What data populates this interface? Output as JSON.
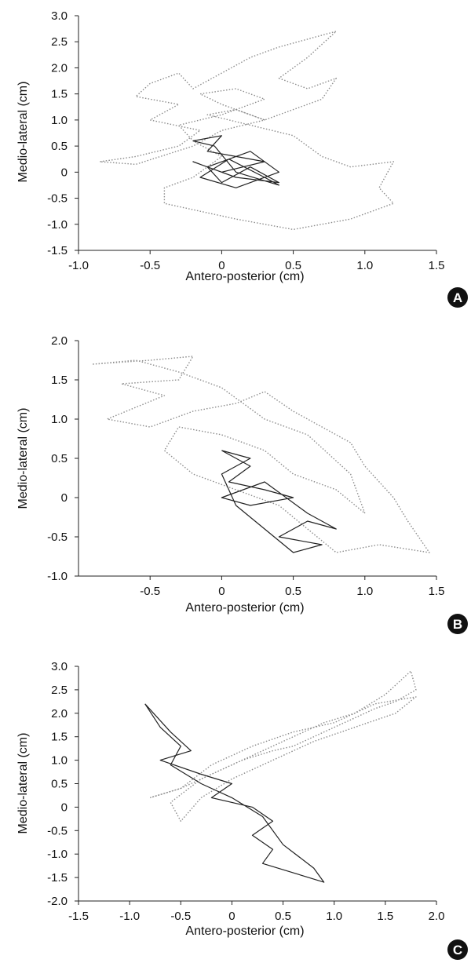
{
  "chart_data": [
    {
      "panel": "A",
      "type": "line",
      "xlabel": "Antero-posterior (cm)",
      "ylabel": "Medio-lateral (cm)",
      "xlim": [
        -1.0,
        1.5
      ],
      "ylim": [
        -1.5,
        3.0
      ],
      "x_ticks": [
        "-1.0",
        "-0.5",
        "0",
        "0.5",
        "1.0",
        "1.5"
      ],
      "y_ticks": [
        "-1.5",
        "-1.0",
        "-0.5",
        "0",
        "0.5",
        "1.0",
        "1.5",
        "2.0",
        "2.5",
        "3.0"
      ],
      "series": [
        {
          "style": "dotted",
          "color": "#8c8c8c",
          "points": [
            [
              -0.85,
              0.2
            ],
            [
              -0.6,
              0.3
            ],
            [
              -0.3,
              0.5
            ],
            [
              -0.15,
              0.8
            ],
            [
              -0.5,
              1.0
            ],
            [
              -0.3,
              1.3
            ],
            [
              -0.6,
              1.45
            ],
            [
              -0.5,
              1.7
            ],
            [
              -0.3,
              1.9
            ],
            [
              -0.2,
              1.6
            ],
            [
              0.0,
              1.9
            ],
            [
              0.2,
              2.2
            ],
            [
              0.4,
              2.4
            ],
            [
              0.6,
              2.55
            ],
            [
              0.8,
              2.7
            ],
            [
              0.6,
              2.2
            ],
            [
              0.4,
              1.8
            ],
            [
              0.6,
              1.6
            ],
            [
              0.8,
              1.8
            ],
            [
              0.7,
              1.4
            ],
            [
              0.5,
              1.2
            ],
            [
              0.3,
              1.0
            ],
            [
              0.1,
              1.2
            ],
            [
              -0.1,
              1.1
            ],
            [
              0.2,
              0.9
            ],
            [
              0.5,
              0.7
            ],
            [
              0.7,
              0.3
            ],
            [
              0.9,
              0.1
            ],
            [
              1.2,
              0.2
            ],
            [
              1.1,
              -0.3
            ],
            [
              1.2,
              -0.6
            ],
            [
              0.9,
              -0.9
            ],
            [
              0.5,
              -1.1
            ],
            [
              0.1,
              -0.9
            ],
            [
              -0.4,
              -0.6
            ],
            [
              -0.4,
              -0.3
            ],
            [
              -0.2,
              -0.1
            ],
            [
              0.0,
              0.3
            ],
            [
              -0.2,
              0.6
            ],
            [
              -0.3,
              0.9
            ],
            [
              0.0,
              1.1
            ],
            [
              0.3,
              1.4
            ],
            [
              0.1,
              1.6
            ],
            [
              -0.15,
              1.5
            ],
            [
              0.0,
              1.3
            ],
            [
              0.3,
              1.0
            ],
            [
              0.0,
              0.8
            ],
            [
              -0.2,
              0.5
            ],
            [
              -0.6,
              0.15
            ],
            [
              -0.85,
              0.2
            ]
          ]
        },
        {
          "style": "solid",
          "color": "#222222",
          "points": [
            [
              -0.2,
              0.6
            ],
            [
              0.0,
              0.7
            ],
            [
              -0.1,
              0.4
            ],
            [
              0.1,
              0.3
            ],
            [
              0.3,
              0.2
            ],
            [
              0.0,
              0.0
            ],
            [
              -0.2,
              0.2
            ],
            [
              0.1,
              -0.1
            ],
            [
              0.4,
              -0.2
            ],
            [
              0.2,
              0.1
            ],
            [
              0.0,
              -0.2
            ],
            [
              -0.1,
              0.1
            ],
            [
              0.2,
              0.4
            ],
            [
              0.4,
              0.0
            ],
            [
              0.1,
              -0.3
            ],
            [
              -0.15,
              -0.1
            ],
            [
              0.05,
              0.25
            ],
            [
              0.3,
              -0.1
            ],
            [
              0.4,
              -0.25
            ],
            [
              0.1,
              0.0
            ],
            [
              -0.05,
              0.5
            ],
            [
              -0.2,
              0.6
            ]
          ]
        }
      ]
    },
    {
      "panel": "B",
      "type": "line",
      "xlabel": "Antero-posterior (cm)",
      "ylabel": "Medio-lateral (cm)",
      "xlim": [
        -1.0,
        1.5
      ],
      "ylim": [
        -1.0,
        2.0
      ],
      "x_ticks": [
        "-0.5",
        "0",
        "0.5",
        "1.0",
        "1.5"
      ],
      "y_ticks": [
        "-1.0",
        "-0.5",
        "0",
        "0.5",
        "1.0",
        "1.5",
        "2.0"
      ],
      "series": [
        {
          "style": "dotted",
          "color": "#8c8c8c",
          "points": [
            [
              -0.9,
              1.7
            ],
            [
              -0.5,
              1.75
            ],
            [
              -0.2,
              1.8
            ],
            [
              -0.3,
              1.5
            ],
            [
              -0.7,
              1.45
            ],
            [
              -0.4,
              1.3
            ],
            [
              -0.8,
              1.0
            ],
            [
              -0.5,
              0.9
            ],
            [
              -0.2,
              1.1
            ],
            [
              0.1,
              1.2
            ],
            [
              0.3,
              1.35
            ],
            [
              0.5,
              1.1
            ],
            [
              0.7,
              0.9
            ],
            [
              0.9,
              0.7
            ],
            [
              1.0,
              0.4
            ],
            [
              1.2,
              0.0
            ],
            [
              1.3,
              -0.3
            ],
            [
              1.45,
              -0.7
            ],
            [
              1.1,
              -0.6
            ],
            [
              0.8,
              -0.7
            ],
            [
              0.6,
              -0.4
            ],
            [
              0.4,
              -0.1
            ],
            [
              0.1,
              0.1
            ],
            [
              -0.2,
              0.3
            ],
            [
              -0.4,
              0.6
            ],
            [
              -0.3,
              0.9
            ],
            [
              0.0,
              0.8
            ],
            [
              0.3,
              0.6
            ],
            [
              0.5,
              0.3
            ],
            [
              0.8,
              0.1
            ],
            [
              1.0,
              -0.2
            ],
            [
              0.9,
              0.3
            ],
            [
              0.6,
              0.8
            ],
            [
              0.3,
              1.0
            ],
            [
              0.0,
              1.4
            ],
            [
              -0.3,
              1.6
            ],
            [
              -0.6,
              1.75
            ],
            [
              -0.9,
              1.7
            ]
          ]
        },
        {
          "style": "solid",
          "color": "#222222",
          "points": [
            [
              0.0,
              0.6
            ],
            [
              0.2,
              0.4
            ],
            [
              0.05,
              0.2
            ],
            [
              0.3,
              0.1
            ],
            [
              0.5,
              0.0
            ],
            [
              0.2,
              -0.1
            ],
            [
              0.0,
              0.0
            ],
            [
              0.3,
              0.2
            ],
            [
              0.6,
              -0.2
            ],
            [
              0.8,
              -0.4
            ],
            [
              0.6,
              -0.3
            ],
            [
              0.4,
              -0.5
            ],
            [
              0.7,
              -0.6
            ],
            [
              0.5,
              -0.7
            ],
            [
              0.3,
              -0.4
            ],
            [
              0.1,
              -0.1
            ],
            [
              0.0,
              0.3
            ],
            [
              0.2,
              0.5
            ],
            [
              0.0,
              0.6
            ]
          ]
        }
      ]
    },
    {
      "panel": "C",
      "type": "line",
      "xlabel": "Antero-posterior (cm)",
      "ylabel": "Medio-lateral (cm)",
      "xlim": [
        -1.5,
        2.0
      ],
      "ylim": [
        -2.0,
        3.0
      ],
      "x_ticks": [
        "-1.5",
        "-1.0",
        "-0.5",
        "0",
        "0.5",
        "1.0",
        "1.5",
        "2.0"
      ],
      "y_ticks": [
        "-2.0",
        "-1.5",
        "-1.0",
        "-0.5",
        "0",
        "0.5",
        "1.0",
        "1.5",
        "2.0",
        "2.5",
        "3.0"
      ],
      "series": [
        {
          "style": "dotted",
          "color": "#8c8c8c",
          "points": [
            [
              -0.8,
              0.2
            ],
            [
              -0.5,
              0.4
            ],
            [
              -0.2,
              0.7
            ],
            [
              0.1,
              1.0
            ],
            [
              0.4,
              1.2
            ],
            [
              0.6,
              1.3
            ],
            [
              0.8,
              1.5
            ],
            [
              1.0,
              1.7
            ],
            [
              1.2,
              1.9
            ],
            [
              1.4,
              2.1
            ],
            [
              1.6,
              2.25
            ],
            [
              1.8,
              2.5
            ],
            [
              1.75,
              2.9
            ],
            [
              1.5,
              2.4
            ],
            [
              1.2,
              2.0
            ],
            [
              0.9,
              1.8
            ],
            [
              0.6,
              1.5
            ],
            [
              0.3,
              1.2
            ],
            [
              0.0,
              0.9
            ],
            [
              -0.3,
              0.6
            ],
            [
              -0.6,
              0.1
            ],
            [
              -0.5,
              -0.3
            ],
            [
              -0.3,
              0.2
            ],
            [
              0.0,
              0.6
            ],
            [
              0.4,
              1.0
            ],
            [
              0.8,
              1.4
            ],
            [
              1.2,
              1.7
            ],
            [
              1.6,
              2.0
            ],
            [
              1.8,
              2.35
            ],
            [
              1.4,
              2.2
            ],
            [
              1.0,
              1.8
            ],
            [
              0.6,
              1.6
            ],
            [
              0.2,
              1.3
            ],
            [
              -0.2,
              0.9
            ],
            [
              -0.5,
              0.4
            ],
            [
              -0.8,
              0.2
            ]
          ]
        },
        {
          "style": "solid",
          "color": "#222222",
          "points": [
            [
              -0.85,
              2.2
            ],
            [
              -0.6,
              1.6
            ],
            [
              -0.4,
              1.2
            ],
            [
              -0.7,
              1.0
            ],
            [
              -0.3,
              0.7
            ],
            [
              0.0,
              0.5
            ],
            [
              -0.2,
              0.2
            ],
            [
              0.2,
              0.0
            ],
            [
              0.4,
              -0.3
            ],
            [
              0.2,
              -0.6
            ],
            [
              0.4,
              -0.9
            ],
            [
              0.3,
              -1.2
            ],
            [
              0.6,
              -1.4
            ],
            [
              0.9,
              -1.6
            ],
            [
              0.8,
              -1.3
            ],
            [
              0.5,
              -0.8
            ],
            [
              0.3,
              -0.2
            ],
            [
              0.0,
              0.2
            ],
            [
              -0.3,
              0.5
            ],
            [
              -0.6,
              0.9
            ],
            [
              -0.5,
              1.3
            ],
            [
              -0.7,
              1.7
            ],
            [
              -0.85,
              2.2
            ]
          ]
        }
      ]
    }
  ]
}
